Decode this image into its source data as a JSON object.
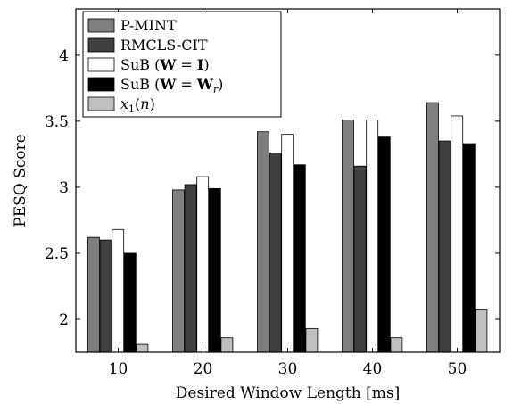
{
  "chart_data": {
    "type": "bar",
    "categories": [
      "10",
      "20",
      "30",
      "40",
      "50"
    ],
    "xlabel": "Desired Window Length [ms]",
    "ylabel": "PESQ Score",
    "ylim": [
      1.75,
      4.35
    ],
    "yticks": [
      2,
      2.5,
      3,
      3.5,
      4
    ],
    "ytick_labels": [
      "2",
      "2.5",
      "3",
      "3.5",
      "4"
    ],
    "grid": false,
    "legend_position": "top-left",
    "series": [
      {
        "name": "P-MINT",
        "color": "#7f7f7f",
        "values": [
          2.62,
          2.98,
          3.42,
          3.51,
          3.64
        ]
      },
      {
        "name": "RMCLS-CIT",
        "color": "#404040",
        "values": [
          2.6,
          3.02,
          3.26,
          3.16,
          3.35
        ]
      },
      {
        "name": "SuB (W = I)",
        "color": "#ffffff",
        "values": [
          2.68,
          3.08,
          3.4,
          3.51,
          3.54
        ]
      },
      {
        "name": "SuB (W = W_r)",
        "color": "#000000",
        "values": [
          2.5,
          2.99,
          3.17,
          3.38,
          3.33
        ]
      },
      {
        "name": "x_1(n)",
        "color": "#bfbfbf",
        "values": [
          1.81,
          1.86,
          1.93,
          1.86,
          2.07
        ]
      }
    ]
  }
}
